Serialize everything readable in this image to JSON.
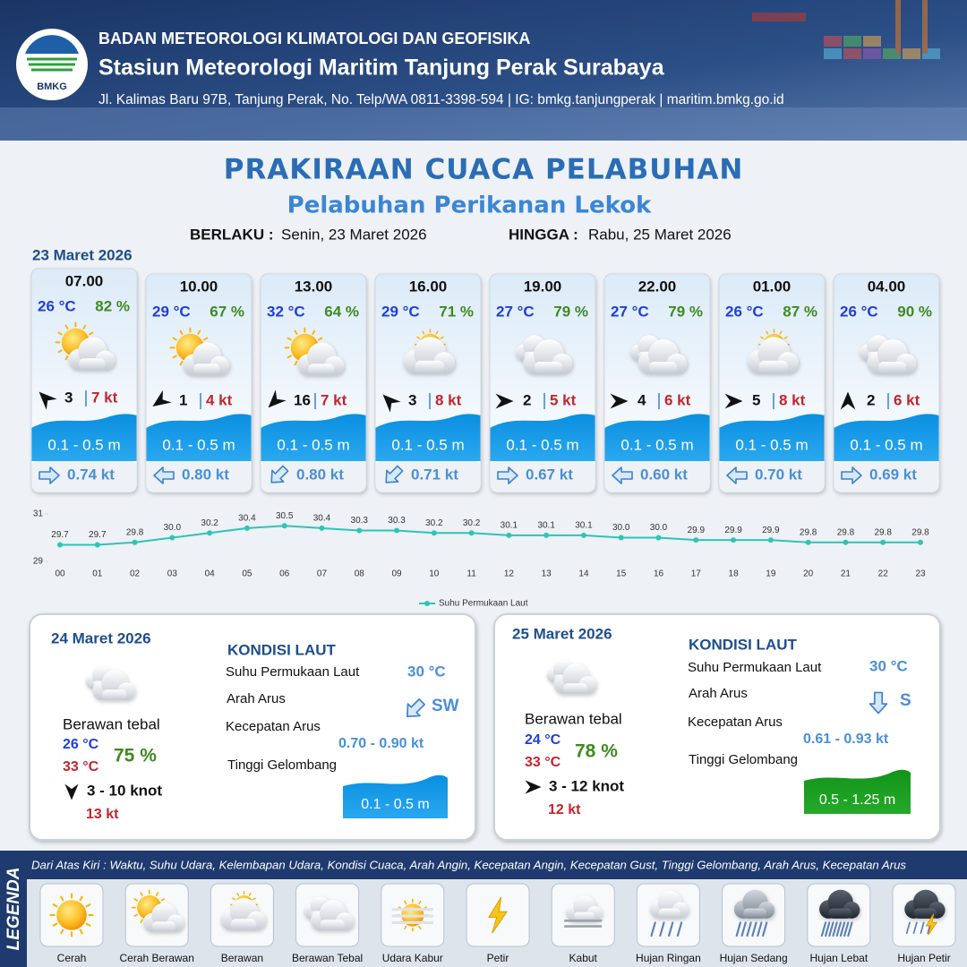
{
  "header": {
    "logo": "BMKG",
    "organization": "BADAN METEOROLOGI KLIMATOLOGI DAN GEOFISIKA",
    "station": "Stasiun Meteorologi Maritim Tanjung Perak Surabaya",
    "contact": "Jl. Kalimas Baru 97B, Tanjung Perak, No. Telp/WA 0811-3398-594 | IG: bmkg.tanjungperak | maritim.bmkg.go.id"
  },
  "title": "PRAKIRAAN CUACA PELABUHAN",
  "subtitle": "Pelabuhan Perikanan Lekok",
  "validity": {
    "from_label": "BERLAKU :",
    "from": "Senin, 23 Maret 2026",
    "to_label": "HINGGA :",
    "to": "Rabu, 25 Maret 2026"
  },
  "today": {
    "date": "23 Maret 2026",
    "forecasts": [
      {
        "time": "07.00",
        "temperature": "26 °C",
        "humidity": "82 %",
        "wind_speed": "3",
        "gust": "7 kt",
        "wave": "0.1 - 0.5 m",
        "current": "0.74 kt"
      },
      {
        "time": "10.00",
        "temperature": "29 °C",
        "humidity": "67 %",
        "wind_speed": "1",
        "gust": "4 kt",
        "wave": "0.1 - 0.5 m",
        "current": "0.80 kt"
      },
      {
        "time": "13.00",
        "temperature": "32 °C",
        "humidity": "64 %",
        "wind_speed": "16",
        "gust": "7 kt",
        "wave": "0.1 - 0.5 m",
        "current": "0.80 kt"
      },
      {
        "time": "16.00",
        "temperature": "29 °C",
        "humidity": "71 %",
        "wind_speed": "3",
        "gust": "8 kt",
        "wave": "0.1 - 0.5 m",
        "current": "0.71 kt"
      },
      {
        "time": "19.00",
        "temperature": "27 °C",
        "humidity": "79 %",
        "wind_speed": "2",
        "gust": "5 kt",
        "wave": "0.1 - 0.5 m",
        "current": "0.67 kt"
      },
      {
        "time": "22.00",
        "temperature": "27 °C",
        "humidity": "79 %",
        "wind_speed": "4",
        "gust": "6 kt",
        "wave": "0.1 - 0.5 m",
        "current": "0.60 kt"
      },
      {
        "time": "01.00",
        "temperature": "26 °C",
        "humidity": "87 %",
        "wind_speed": "5",
        "gust": "8 kt",
        "wave": "0.1 - 0.5 m",
        "current": "0.70 kt"
      },
      {
        "time": "04.00",
        "temperature": "26 °C",
        "humidity": "90 %",
        "wind_speed": "2",
        "gust": "6 kt",
        "wave": "0.1 - 0.5 m",
        "current": "0.69 kt"
      }
    ]
  },
  "chart_data": {
    "type": "line",
    "categories": [
      "00",
      "01",
      "02",
      "03",
      "04",
      "05",
      "06",
      "07",
      "08",
      "09",
      "10",
      "11",
      "12",
      "13",
      "14",
      "15",
      "16",
      "17",
      "18",
      "19",
      "20",
      "21",
      "22",
      "23"
    ],
    "series": [
      {
        "name": "Suhu Permukaan Laut",
        "color": "#2ec4b6",
        "values": [
          29.7,
          29.7,
          29.8,
          30.0,
          30.2,
          30.4,
          30.5,
          30.4,
          30.3,
          30.3,
          30.2,
          30.2,
          30.1,
          30.1,
          30.1,
          30.0,
          30.0,
          29.9,
          29.9,
          29.9,
          29.8,
          29.8,
          29.8,
          29.8
        ],
        "value_labels": [
          "29.7",
          "29.7",
          "29.8",
          "30.0",
          "30.2",
          "30.4",
          "30.5",
          "30.4",
          "30.3",
          "30.3",
          "30.2",
          "30.2",
          "30.1",
          "30.1",
          "30.1",
          "30.0",
          "30.0",
          "29.9",
          "29.9",
          "29.9",
          "29.8",
          "29.8",
          "29.8",
          "29.8"
        ]
      }
    ],
    "ylim": [
      29,
      31
    ],
    "yticks": [
      29,
      31
    ],
    "legend": "bottom"
  },
  "days": [
    {
      "date": "24 Maret 2026",
      "condition": "Berawan tebal",
      "temp_min": "26 °C",
      "temp_max": "33 °C",
      "humidity": "75 %",
      "wind": "3 - 10 knot",
      "gust": "13 kt",
      "sea_heading": "KONDISI LAUT",
      "sst_label": "Suhu Permukaan Laut",
      "sst": "30 °C",
      "current_dir_label": "Arah Arus",
      "current_dir": "SW",
      "current_speed_label": "Kecepatan Arus",
      "current_speed": "0.70 - 0.90 kt",
      "wave_label": "Tinggi Gelombang",
      "wave": "0.1 - 0.5 m"
    },
    {
      "date": "25 Maret 2026",
      "condition": "Berawan tebal",
      "temp_min": "24 °C",
      "temp_max": "33 °C",
      "humidity": "78 %",
      "wind": "3 - 12 knot",
      "gust": "12 kt",
      "sea_heading": "KONDISI LAUT",
      "sst_label": "Suhu Permukaan Laut",
      "sst": "30 °C",
      "current_dir_label": "Arah Arus",
      "current_dir": "S",
      "current_speed_label": "Kecepatan Arus",
      "current_speed": "0.61 - 0.93 kt",
      "wave_label": "Tinggi Gelombang",
      "wave": "0.5 - 1.25 m"
    }
  ],
  "legend": {
    "title": "LEGENDA",
    "description": "Dari Atas Kiri : Waktu, Suhu Udara, Kelembapan Udara, Kondisi Cuaca, Arah Angin, Kecepatan Angin, Kecepatan Gust, Tinggi Gelombang, Arah Arus, Kecepatan Arus",
    "items": [
      "Cerah",
      "Cerah Berawan",
      "Berawan",
      "Berawan Tebal",
      "Udara Kabur",
      "Petir",
      "Kabut",
      "Hujan Ringan",
      "Hujan Sedang",
      "Hujan Lebat",
      "Hujan Petir"
    ]
  }
}
